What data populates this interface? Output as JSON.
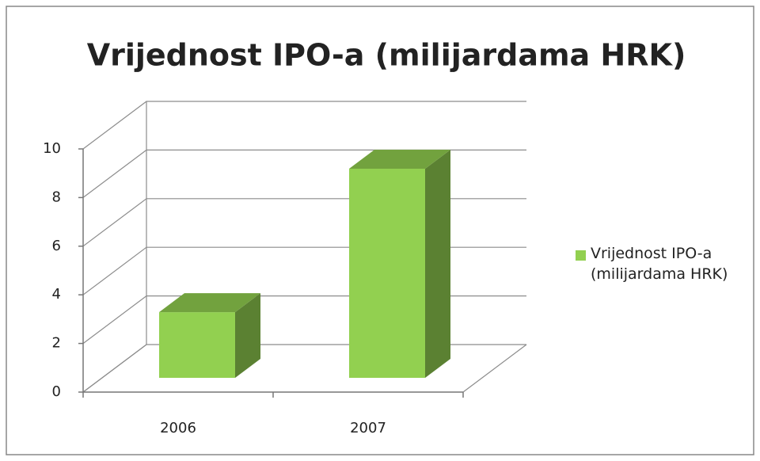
{
  "chart_data": {
    "type": "bar3d",
    "title": "Vrijednost IPO-a (milijardama HRK)",
    "categories": [
      "2006",
      "2007"
    ],
    "series": [
      {
        "name": "Vrijednost IPO-a (milijardama HRK)",
        "color": "#92d050",
        "values": [
          2.7,
          8.6
        ]
      }
    ],
    "ylim": [
      0,
      10
    ],
    "yticks": [
      0,
      2,
      4,
      6,
      8,
      10
    ],
    "grid": true,
    "legend": "right"
  }
}
